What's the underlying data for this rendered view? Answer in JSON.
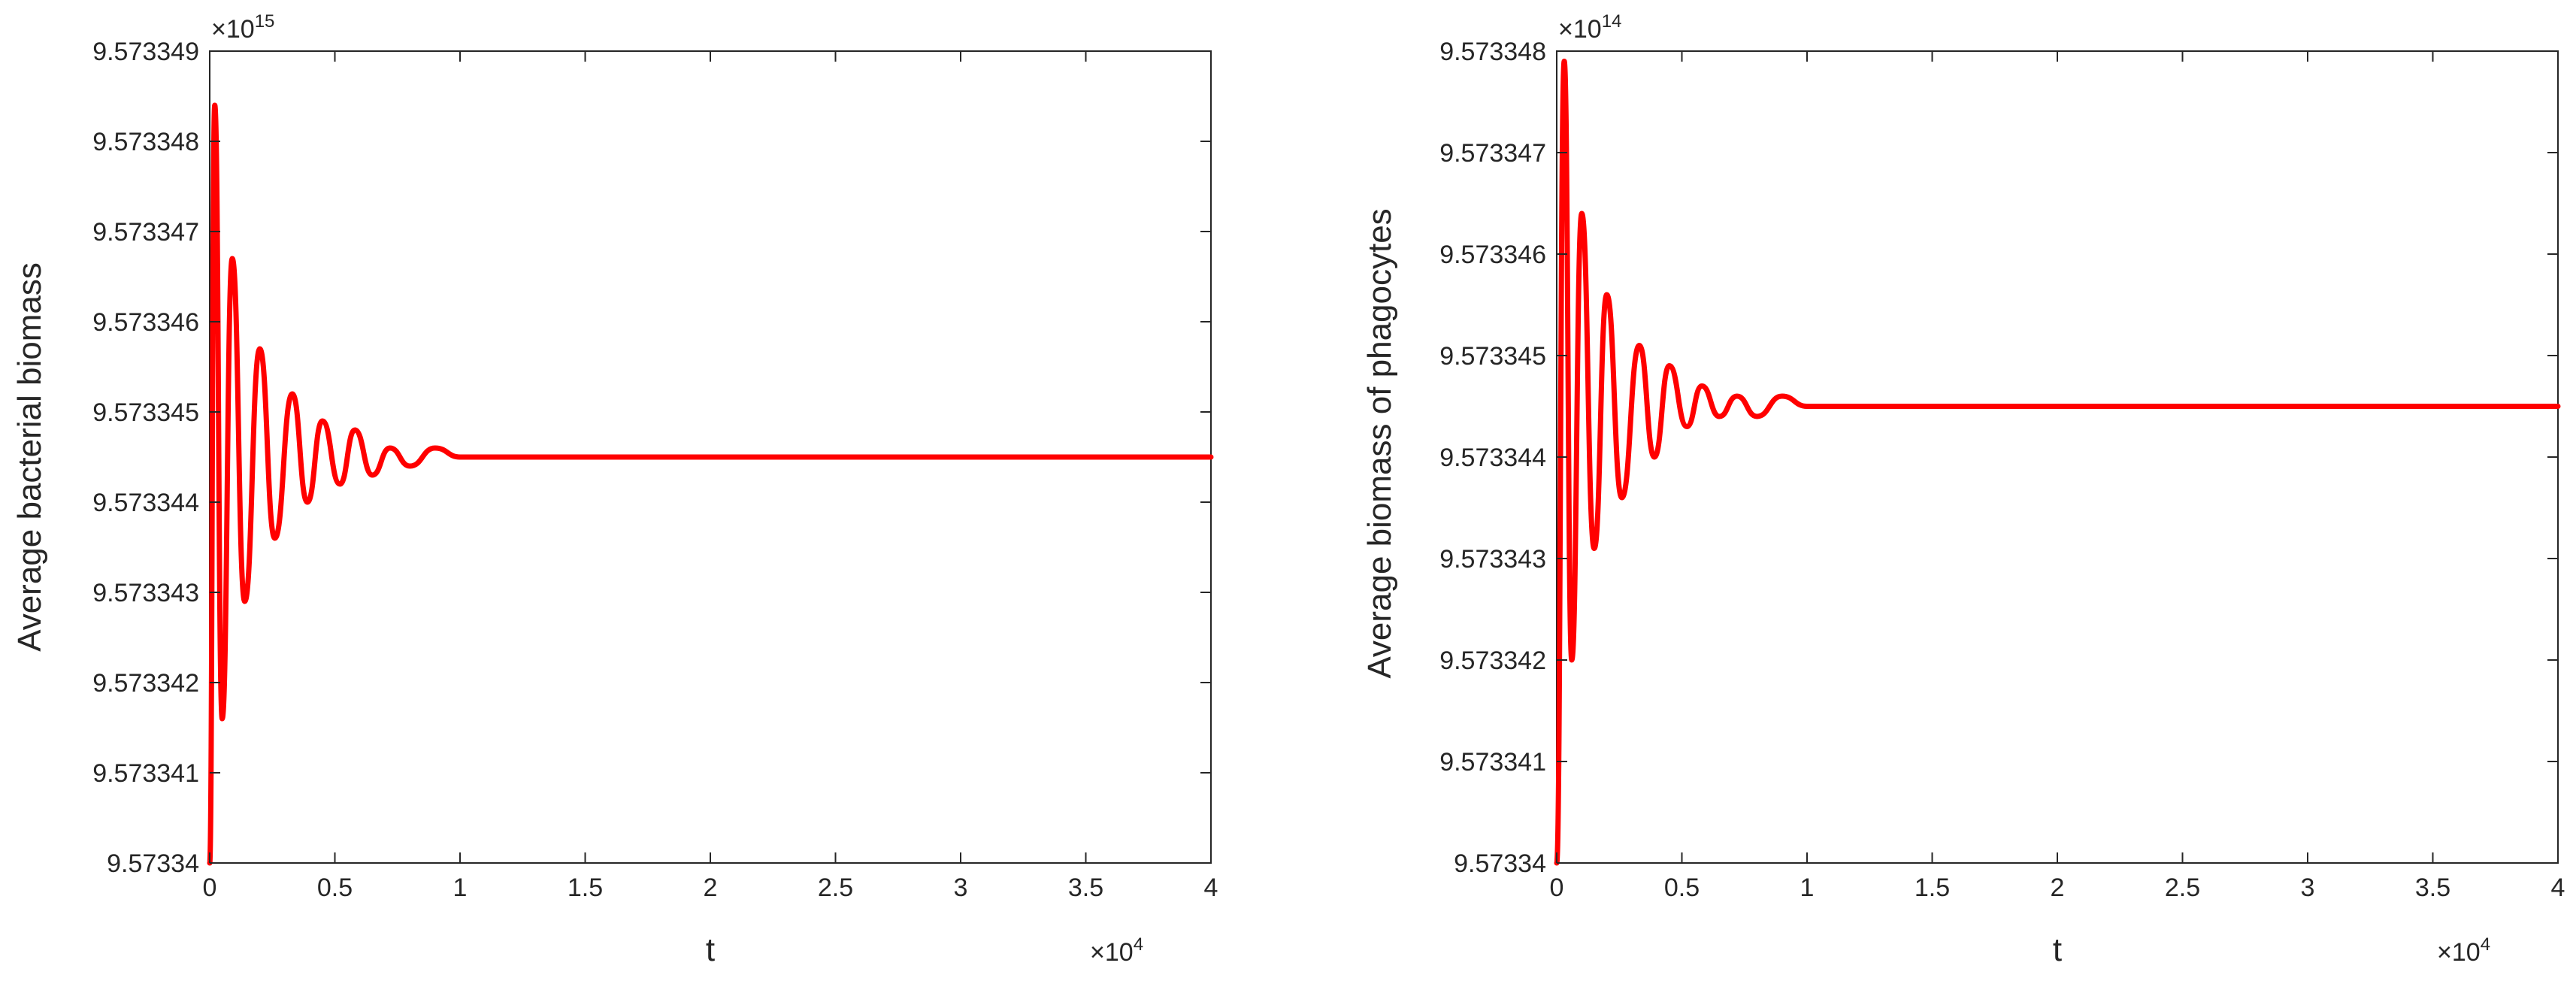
{
  "chart_data": [
    {
      "type": "line",
      "xlabel": "t",
      "ylabel": "Average bacterial biomass",
      "x_multiplier": {
        "base": "×10",
        "exp": "4"
      },
      "y_multiplier": {
        "base": "×10",
        "exp": "15"
      },
      "xlim": [
        0,
        4
      ],
      "ylim": [
        9.57334,
        9.573349
      ],
      "x_ticks": [
        "0",
        "0.5",
        "1",
        "1.5",
        "2",
        "2.5",
        "3",
        "3.5",
        "4"
      ],
      "y_ticks": [
        "9.57334",
        "9.573341",
        "9.573342",
        "9.573343",
        "9.573344",
        "9.573345",
        "9.573346",
        "9.573347",
        "9.573348",
        "9.573349"
      ],
      "grid": false,
      "series": [
        {
          "color": "#ff0000",
          "x": [
            0,
            0.02,
            0.05,
            0.09,
            0.14,
            0.2,
            0.26,
            0.33,
            0.39,
            0.45,
            0.52,
            0.58,
            0.65,
            0.72,
            0.8,
            0.9,
            1.0,
            4.0
          ],
          "y": [
            9.57334,
            9.5733484,
            9.5733416,
            9.5733467,
            9.5733429,
            9.5733457,
            9.5733436,
            9.5733452,
            9.573344,
            9.5733449,
            9.5733442,
            9.5733448,
            9.5733443,
            9.5733446,
            9.5733444,
            9.5733446,
            9.5733445,
            9.5733445
          ]
        }
      ]
    },
    {
      "type": "line",
      "xlabel": "t",
      "ylabel": "Average biomass of phagocytes",
      "x_multiplier": {
        "base": "×10",
        "exp": "4"
      },
      "y_multiplier": {
        "base": "×10",
        "exp": "14"
      },
      "xlim": [
        0,
        4
      ],
      "ylim": [
        9.57334,
        9.573348
      ],
      "x_ticks": [
        "0",
        "0.5",
        "1",
        "1.5",
        "2",
        "2.5",
        "3",
        "3.5",
        "4"
      ],
      "y_ticks": [
        "9.57334",
        "9.573341",
        "9.573342",
        "9.573343",
        "9.573344",
        "9.573345",
        "9.573346",
        "9.573347",
        "9.573348"
      ],
      "grid": false,
      "series": [
        {
          "color": "#ff0000",
          "x": [
            0,
            0.03,
            0.06,
            0.1,
            0.15,
            0.2,
            0.26,
            0.33,
            0.39,
            0.45,
            0.52,
            0.58,
            0.65,
            0.72,
            0.8,
            0.9,
            1.0,
            4.0
          ],
          "y": [
            9.57334,
            9.5733479,
            9.573342,
            9.5733464,
            9.5733431,
            9.5733456,
            9.5733436,
            9.5733451,
            9.573344,
            9.5733449,
            9.5733443,
            9.5733447,
            9.5733444,
            9.5733446,
            9.5733444,
            9.5733446,
            9.5733445,
            9.5733445
          ]
        }
      ]
    }
  ]
}
